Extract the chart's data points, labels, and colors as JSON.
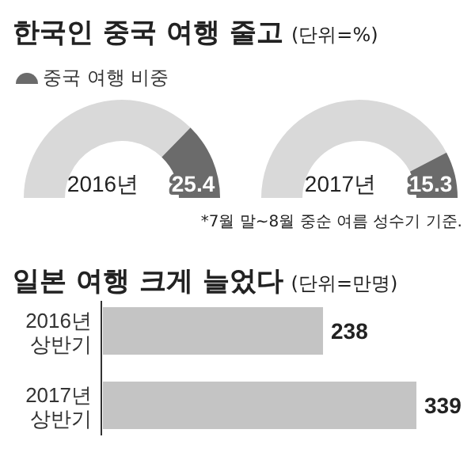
{
  "chart_data": [
    {
      "type": "donut",
      "title": "한국인 중국 여행 줄고",
      "categories": [
        null,
        "중국 여행 비중"
      ],
      "values": [
        74.6,
        25.4
      ],
      "colors": [
        "#d9d9d9",
        "#6b6b6b"
      ],
      "value_labels": [
        null,
        "25.4"
      ],
      "legend": "top left",
      "annotations": [
        "2016년"
      ]
    },
    {
      "type": "donut",
      "subtitle": "(단위=%)",
      "categories": [
        null,
        null
      ],
      "values": [
        84.7,
        15.3
      ],
      "colors": [
        "#d9d9d9",
        "#6b6b6b"
      ],
      "value_labels": [
        null,
        "15.3"
      ],
      "annotations": [
        "2017년",
        "*7월 말~8월 중순 여름 성수기 기준."
      ]
    },
    {
      "type": "bar",
      "orientation": "horizontal",
      "title": "일본 여행 크게 늘었다",
      "subtitle": "(단위=만명)",
      "categories": [
        "2016년 상반기",
        "2017년 상반기"
      ],
      "values": [
        238,
        339
      ],
      "color": "#c4c4c4",
      "data_labels": true
    }
  ]
}
